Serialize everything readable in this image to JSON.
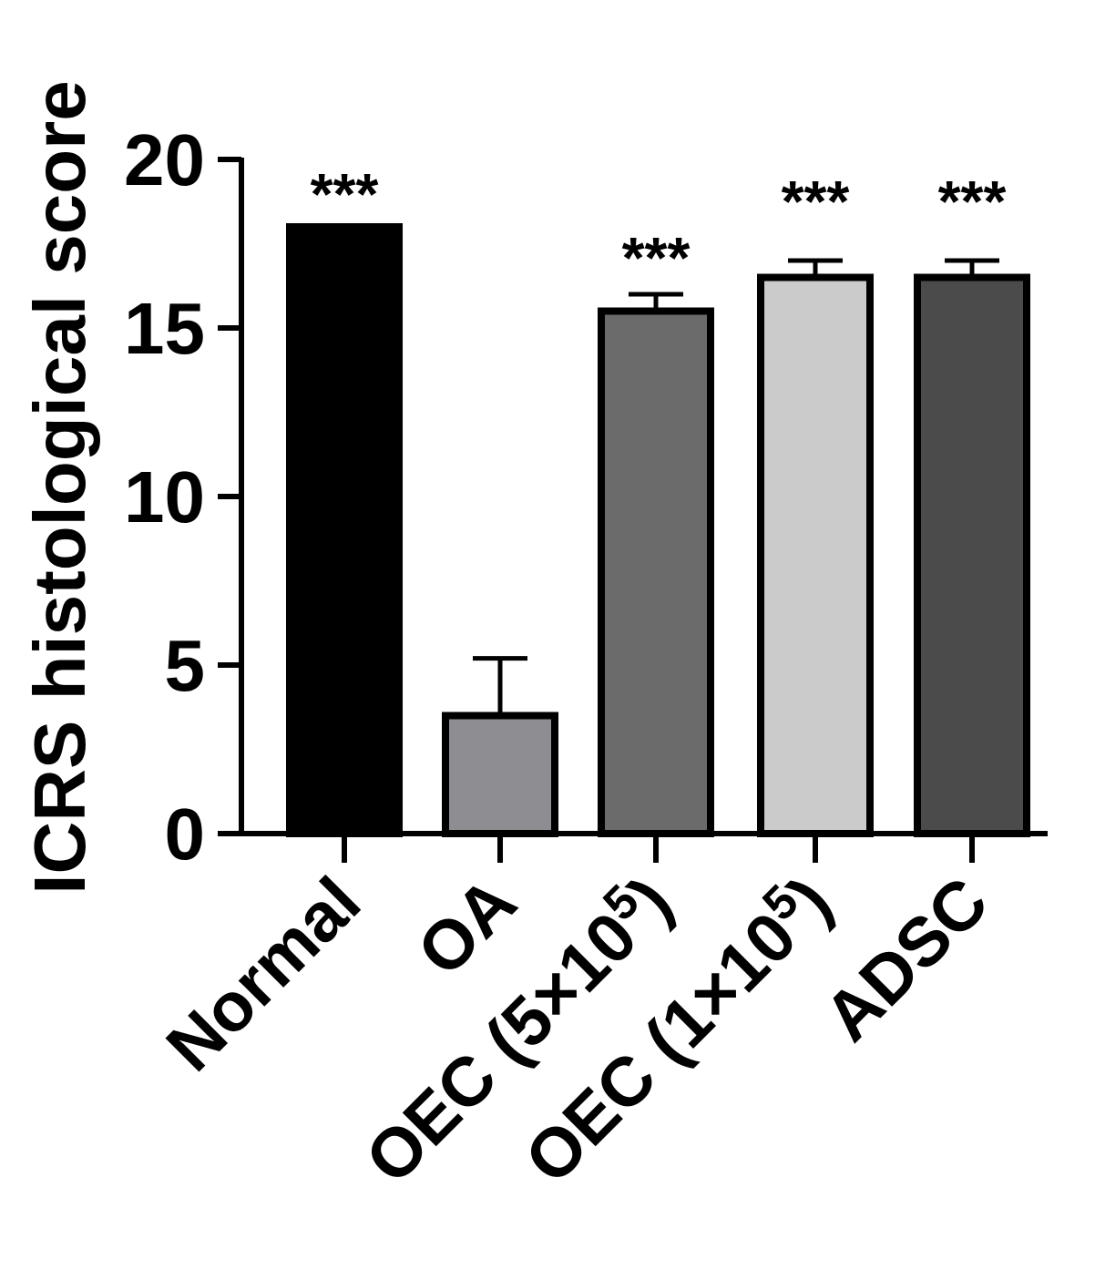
{
  "chart_data": {
    "type": "bar",
    "title": "",
    "xlabel": "",
    "ylabel": "ICRS histological score",
    "ylim": [
      0,
      20
    ],
    "yticks": [
      0,
      5,
      10,
      15,
      20
    ],
    "categories": [
      {
        "label": "Normal",
        "label_base": "Normal",
        "label_sup": ""
      },
      {
        "label": "OA",
        "label_base": "OA",
        "label_sup": ""
      },
      {
        "label": "OEC (5×10⁵)",
        "label_base": "OEC (5×10",
        "label_sup": "5",
        "label_close": ")"
      },
      {
        "label": "OEC (1×10⁵)",
        "label_base": "OEC (1×10",
        "label_sup": "5",
        "label_close": ")"
      },
      {
        "label": "ADSC",
        "label_base": "ADSC",
        "label_sup": ""
      }
    ],
    "values": [
      18.0,
      3.5,
      15.5,
      16.5,
      16.5
    ],
    "error": [
      0,
      1.7,
      0.5,
      0.5,
      0.5
    ],
    "significance": [
      "***",
      "",
      "***",
      "***",
      "***"
    ],
    "colors": [
      "#000000",
      "#8e8e92",
      "#6b6b6b",
      "#cbcbcb",
      "#4b4b4b"
    ],
    "grid": false,
    "legend": "none"
  }
}
